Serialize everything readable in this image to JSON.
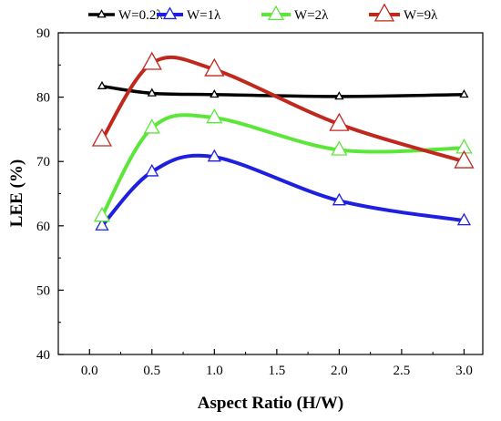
{
  "chart_data": {
    "type": "line",
    "title": "",
    "xlabel": "Aspect Ratio (H/W)",
    "ylabel": "LEE (%)",
    "xlim": [
      -0.25,
      3.15
    ],
    "ylim": [
      40,
      90
    ],
    "xticks": [
      0.0,
      0.5,
      1.0,
      1.5,
      2.0,
      2.5,
      3.0
    ],
    "xtick_labels": [
      "0.0",
      "0.5",
      "1.0",
      "1.5",
      "2.0",
      "2.5",
      "3.0"
    ],
    "yticks": [
      40,
      50,
      60,
      70,
      80,
      90
    ],
    "ytick_labels": [
      "40",
      "50",
      "60",
      "70",
      "80",
      "90"
    ],
    "grid": false,
    "legend_position": "top",
    "series": [
      {
        "name": "W=0.2λ",
        "color": "#000000",
        "marker": "triangle-small",
        "x": [
          0.1,
          0.5,
          1.0,
          2.0,
          3.0
        ],
        "y": [
          81.7,
          80.6,
          80.4,
          80.1,
          80.4
        ]
      },
      {
        "name": "W=1λ",
        "color": "#1f1fe0",
        "marker": "triangle-medium",
        "x": [
          0.1,
          0.5,
          1.0,
          2.0,
          3.0
        ],
        "y": [
          60.0,
          68.4,
          70.7,
          63.9,
          60.8
        ]
      },
      {
        "name": "W=2λ",
        "color": "#5ce63a",
        "marker": "triangle-large",
        "x": [
          0.1,
          0.5,
          1.0,
          2.0,
          3.0
        ],
        "y": [
          61.5,
          75.2,
          76.8,
          71.8,
          72.1
        ]
      },
      {
        "name": "W=9λ",
        "color": "#c0281e",
        "marker": "triangle-xlarge",
        "x": [
          0.1,
          0.5,
          1.0,
          2.0,
          3.0
        ],
        "y": [
          73.4,
          85.3,
          84.3,
          75.8,
          70.0
        ]
      }
    ]
  }
}
